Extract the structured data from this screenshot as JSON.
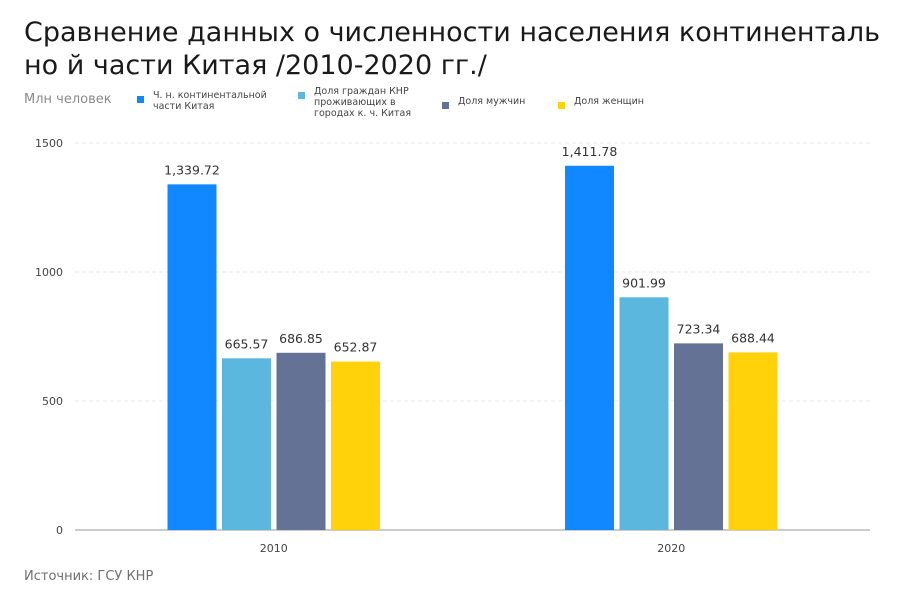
{
  "title": "Сравнение данных о численности населения континентально й части Китая /2010-2020 гг./",
  "unit": "Млн человек",
  "source": "Источник: ГСУ КНР",
  "colors": {
    "total": "#1188ff",
    "urban": "#5bb7dd",
    "men": "#647395",
    "women": "#ffd20a",
    "grid": "#e8e8e8",
    "axis": "#9a9a9a",
    "text": "#444444"
  },
  "chart_data": {
    "type": "bar",
    "categories": [
      "2010",
      "2020"
    ],
    "series": [
      {
        "name": "Ч. н. континентальной части Китая",
        "values": [
          1339.72,
          1411.78
        ],
        "labels": [
          "1,339.72",
          "1,411.78"
        ]
      },
      {
        "name": "Доля граждан КНР проживающих в городах к. ч. Китая",
        "values": [
          665.57,
          901.99
        ],
        "labels": [
          "665.57",
          "901.99"
        ]
      },
      {
        "name": "Доля мужчин",
        "values": [
          686.85,
          723.34
        ],
        "labels": [
          "686.85",
          "723.34"
        ]
      },
      {
        "name": "Доля женщин",
        "values": [
          652.87,
          688.44
        ],
        "labels": [
          "652.87",
          "688.44"
        ]
      }
    ],
    "yticks": [
      "0",
      "500",
      "1000",
      "1500"
    ],
    "ylim": [
      0,
      1500
    ],
    "grid": true,
    "legend_position": "top"
  }
}
